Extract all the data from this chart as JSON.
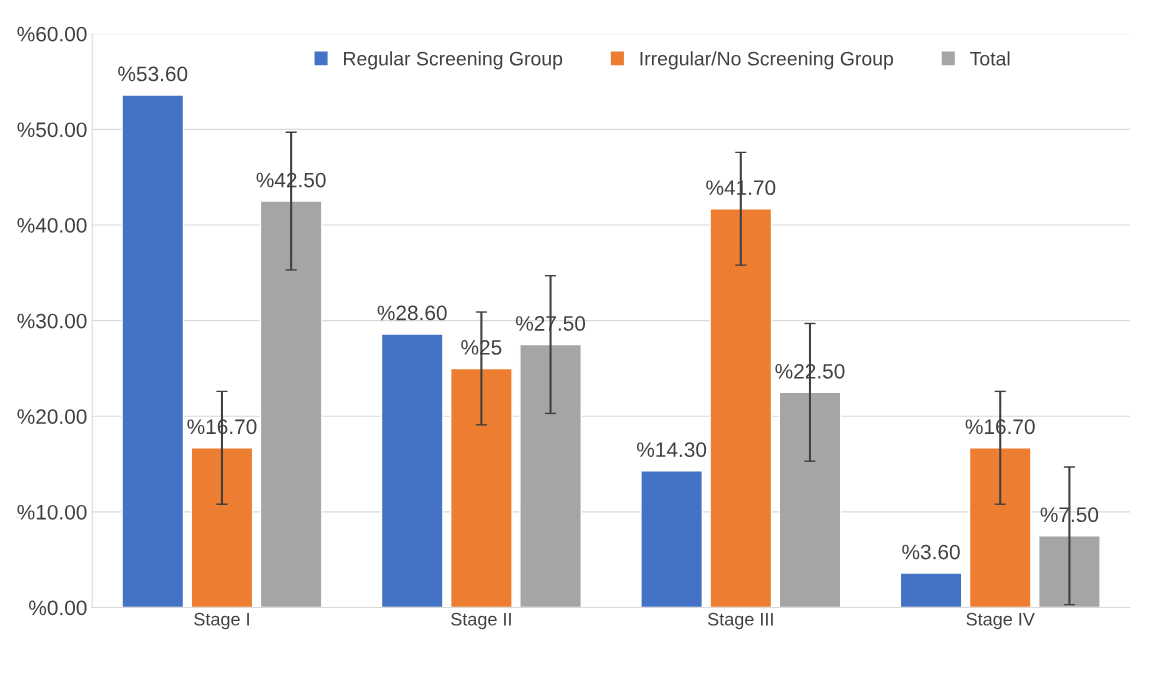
{
  "chart_data": {
    "type": "bar",
    "categories": [
      "Stage I",
      "Stage II",
      "Stage III",
      "Stage IV"
    ],
    "series": [
      {
        "name": "Regular Screening Group",
        "color": "#4472c4",
        "values": [
          53.6,
          28.6,
          14.3,
          3.6
        ],
        "value_labels": [
          "%53.60",
          "%28.60",
          "%14.30",
          "%3.60"
        ]
      },
      {
        "name": "Irregular/No Screening Group",
        "color": "#ed7d31",
        "values": [
          16.7,
          25,
          41.7,
          16.7
        ],
        "errors": [
          5.9,
          5.9,
          5.9,
          5.9
        ],
        "value_labels": [
          "%16.70",
          "%25",
          "%41.70",
          "%16.70"
        ]
      },
      {
        "name": "Total",
        "color": "#a5a5a5",
        "values": [
          42.5,
          27.5,
          22.5,
          7.5
        ],
        "errors": [
          7.2,
          7.2,
          7.2,
          7.2
        ],
        "value_labels": [
          "%42.50",
          "%27.50",
          "%22.50",
          "%7.50"
        ]
      }
    ],
    "ylim": [
      0,
      60
    ],
    "yticks": [
      {
        "value": 0,
        "label": "%0.00"
      },
      {
        "value": 10,
        "label": "%10.00"
      },
      {
        "value": 20,
        "label": "%20.00"
      },
      {
        "value": 30,
        "label": "%30.00"
      },
      {
        "value": 40,
        "label": "%40.00"
      },
      {
        "value": 50,
        "label": "%50.00"
      },
      {
        "value": 60,
        "label": "%60.00"
      }
    ],
    "grid": "y",
    "legend": "top"
  }
}
